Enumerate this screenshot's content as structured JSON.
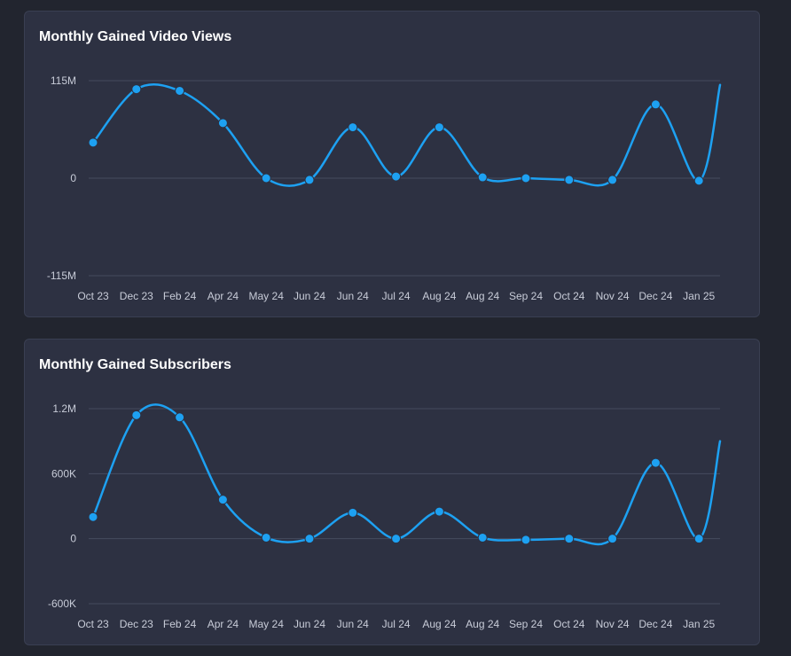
{
  "colors": {
    "background": "#22252f",
    "card": "#2d3142",
    "line": "#1da1f2",
    "grid": "#454b5f",
    "text": "#ffffff",
    "axis_text": "#c8ccd8"
  },
  "chart_data": [
    {
      "type": "line",
      "title": "Monthly Gained Video Views",
      "categories": [
        "Oct 23",
        "Dec 23",
        "Feb 24",
        "Apr 24",
        "May 24",
        "Jun 24",
        "Jun 24",
        "Jul 24",
        "Aug 24",
        "Aug 24",
        "Sep 24",
        "Oct 24",
        "Nov 24",
        "Dec 24",
        "Jan 25"
      ],
      "values": [
        42,
        105,
        103,
        65,
        0,
        -2,
        60,
        2,
        60,
        1,
        0,
        -2,
        -2,
        87,
        -3
      ],
      "end_value": 110,
      "y_ticks": [
        {
          "value": 115,
          "label": "115M"
        },
        {
          "value": 0,
          "label": "0"
        },
        {
          "value": -115,
          "label": "-115M"
        }
      ],
      "ylim": [
        -115,
        115
      ],
      "xlabel": "",
      "ylabel": ""
    },
    {
      "type": "line",
      "title": "Monthly Gained Subscribers",
      "categories": [
        "Oct 23",
        "Dec 23",
        "Feb 24",
        "Apr 24",
        "May 24",
        "Jun 24",
        "Jun 24",
        "Jul 24",
        "Aug 24",
        "Aug 24",
        "Sep 24",
        "Oct 24",
        "Nov 24",
        "Dec 24",
        "Jan 25"
      ],
      "values": [
        200,
        1140,
        1120,
        360,
        10,
        0,
        240,
        0,
        250,
        10,
        -10,
        0,
        0,
        700,
        0
      ],
      "end_value": 900,
      "y_ticks": [
        {
          "value": 1200,
          "label": "1.2M"
        },
        {
          "value": 600,
          "label": "600K"
        },
        {
          "value": 0,
          "label": "0"
        },
        {
          "value": -600,
          "label": "-600K"
        }
      ],
      "ylim": [
        -600,
        1200
      ],
      "xlabel": "",
      "ylabel": ""
    }
  ]
}
